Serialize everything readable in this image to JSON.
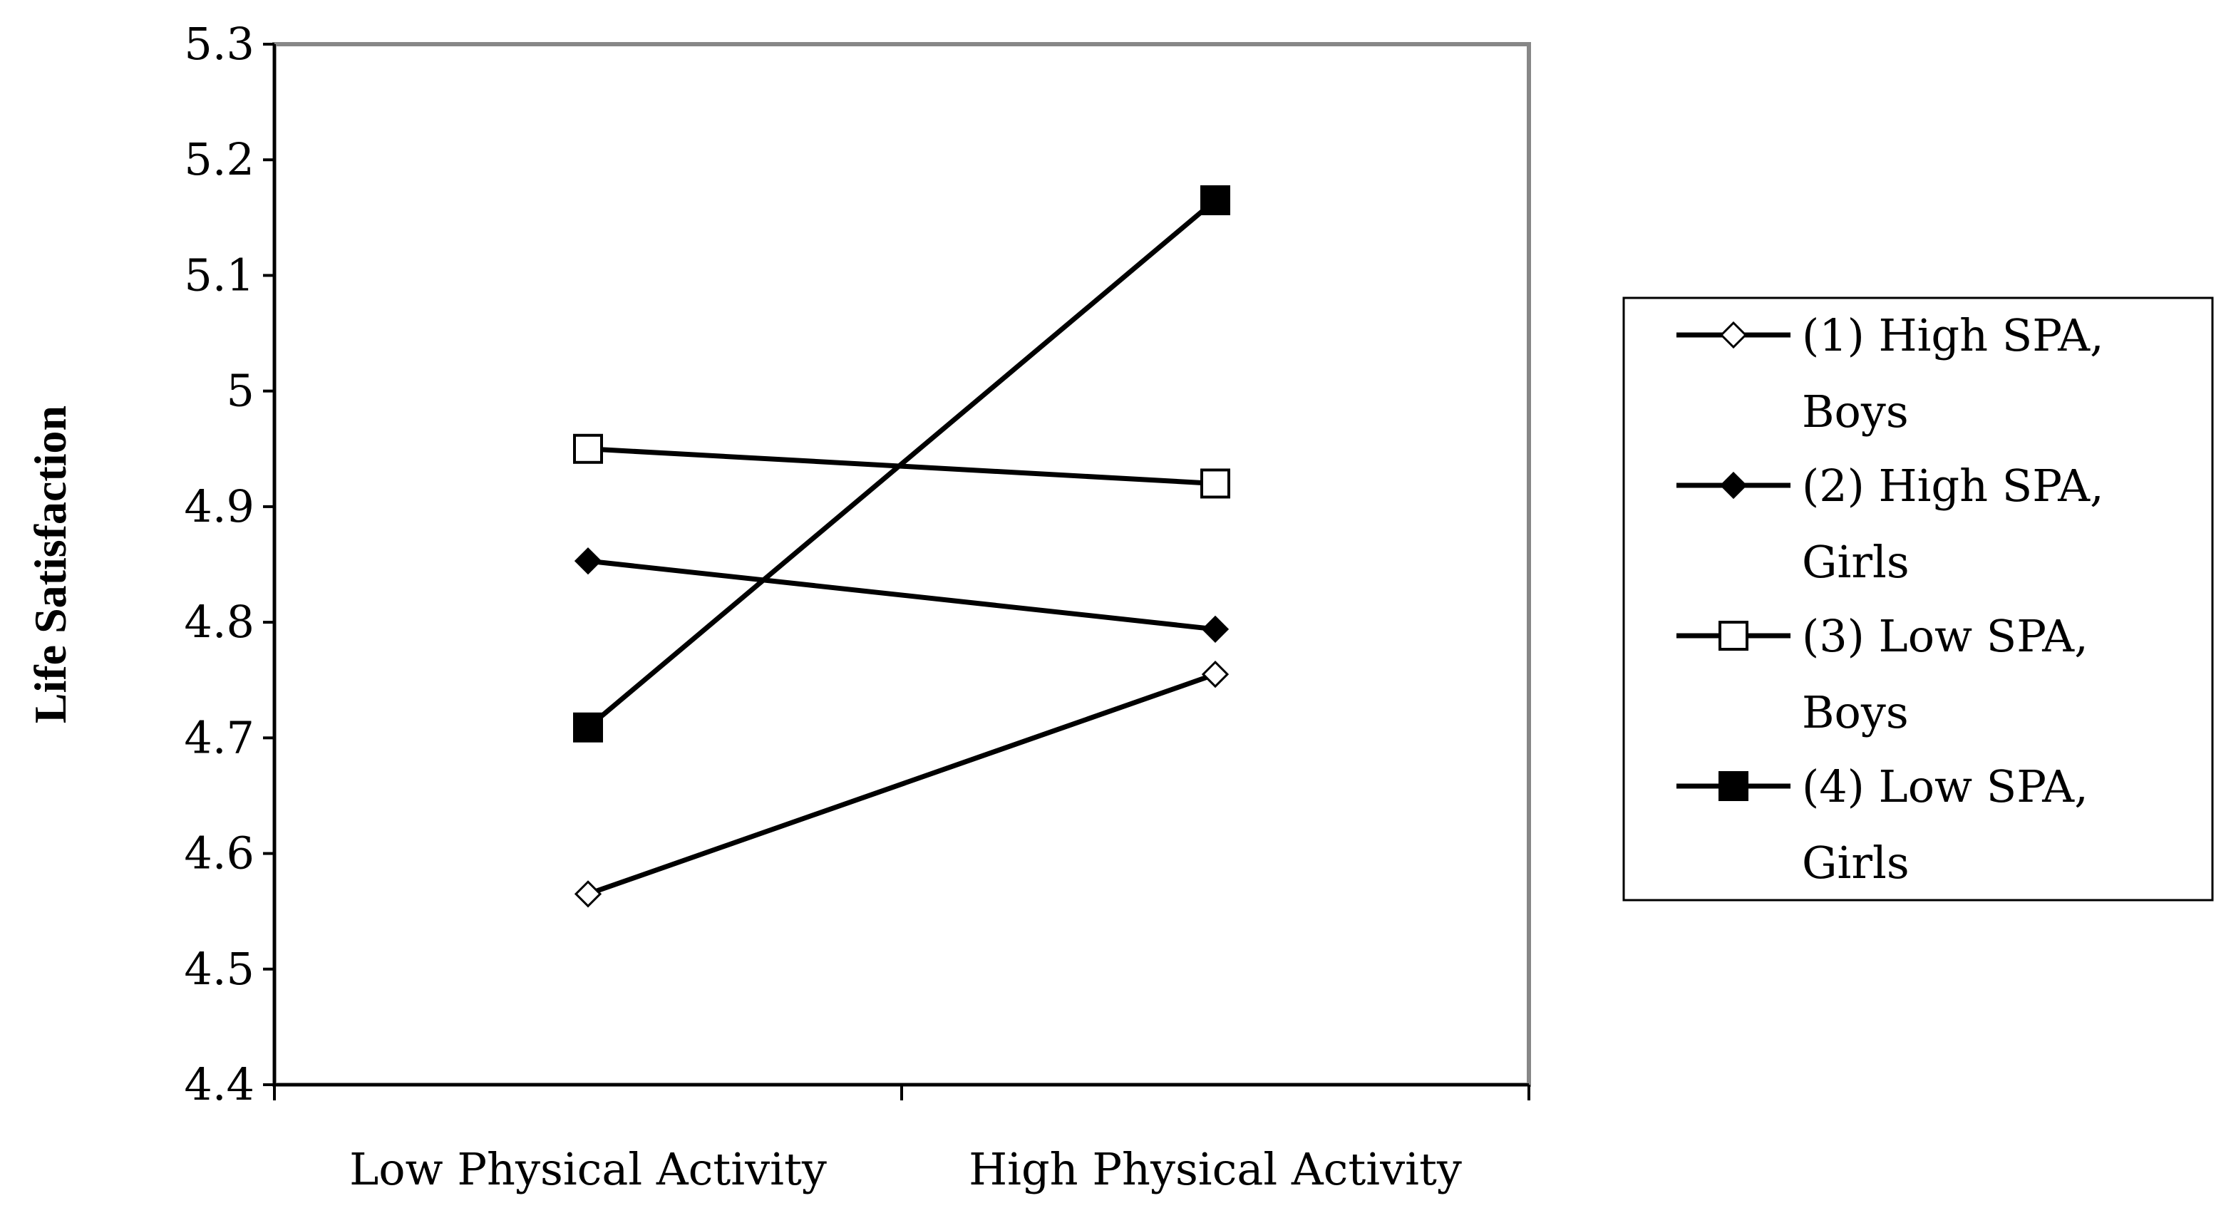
{
  "chart_data": {
    "type": "line",
    "title": "",
    "xlabel": "",
    "ylabel": "Life Satisfaction",
    "categories": [
      "Low Physical Activity",
      "High Physical Activity"
    ],
    "ylim": [
      4.4,
      5.3
    ],
    "yticks": [
      "4.4",
      "4.5",
      "4.6",
      "4.7",
      "4.8",
      "4.9",
      "5",
      "5.1",
      "5.2",
      "5.3"
    ],
    "grid": false,
    "legend_position": "right",
    "series": [
      {
        "name": "(1) High SPA, Boys",
        "legend_lines": [
          "(1) High SPA,",
          "Boys"
        ],
        "values": [
          4.565,
          4.755
        ],
        "marker": "diamond-open",
        "color": "#000000"
      },
      {
        "name": "(2) High SPA, Girls",
        "legend_lines": [
          "(2) High SPA,",
          "Girls"
        ],
        "values": [
          4.853,
          4.794
        ],
        "marker": "diamond-filled",
        "color": "#000000"
      },
      {
        "name": "(3) Low SPA, Boys",
        "legend_lines": [
          "(3) Low SPA,",
          "Boys"
        ],
        "values": [
          4.95,
          4.92
        ],
        "marker": "square-open",
        "color": "#000000"
      },
      {
        "name": "(4) Low SPA, Girls",
        "legend_lines": [
          "(4) Low SPA,",
          "Girls"
        ],
        "values": [
          4.709,
          5.165
        ],
        "marker": "square-filled",
        "color": "#000000"
      }
    ]
  }
}
